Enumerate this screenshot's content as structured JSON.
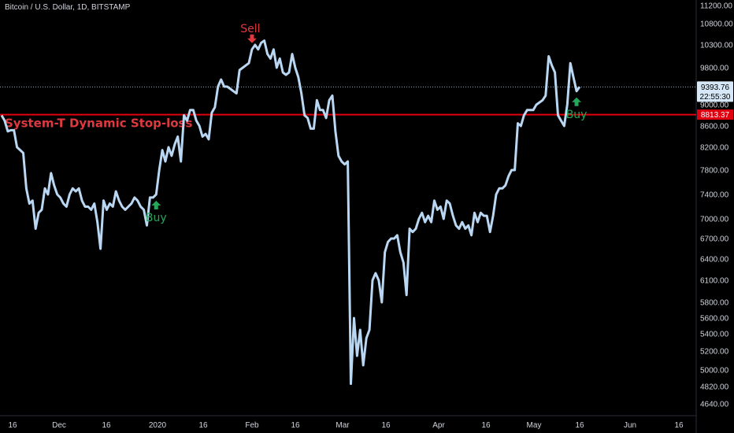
{
  "header": {
    "title": "Bitcoin / U.S. Dollar, 1D, BITSTAMP"
  },
  "chart_data": {
    "type": "line",
    "title": "Bitcoin / U.S. Dollar, 1D, BITSTAMP",
    "ylim": [
      4500,
      11300
    ],
    "y_ticks": [
      "11200.00",
      "10800.00",
      "10300.00",
      "9800.00",
      "9400.00",
      "9000.00",
      "8600.00",
      "8200.00",
      "7800.00",
      "7400.00",
      "7000.00",
      "6700.00",
      "6400.00",
      "6100.00",
      "5800.00",
      "5600.00",
      "5400.00",
      "5200.00",
      "5000.00",
      "4820.00",
      "4640.00"
    ],
    "x_tick_labels": [
      "16",
      "Dec",
      "16",
      "2020",
      "16",
      "Feb",
      "16",
      "Mar",
      "16",
      "Apr",
      "16",
      "May",
      "16",
      "Jun",
      "16"
    ],
    "series": [
      {
        "color": "#b9d7f2",
        "values": [
          8800,
          8700,
          8500,
          8520,
          8520,
          8200,
          8150,
          8100,
          7500,
          7250,
          7300,
          6850,
          7100,
          7150,
          7500,
          7400,
          7750,
          7550,
          7400,
          7350,
          7250,
          7200,
          7400,
          7500,
          7450,
          7500,
          7300,
          7200,
          7200,
          7150,
          7250,
          6950,
          6550,
          7300,
          7150,
          7250,
          7200,
          7450,
          7300,
          7200,
          7150,
          7200,
          7250,
          7350,
          7300,
          7200,
          7150,
          6900,
          7350,
          7350,
          7400,
          7800,
          8150,
          7950,
          8200,
          8050,
          8250,
          8400,
          7950,
          8800,
          8700,
          8900,
          8900,
          8700,
          8600,
          8400,
          8450,
          8350,
          8850,
          8950,
          9400,
          9550,
          9400,
          9400,
          9350,
          9300,
          9250,
          9750,
          9800,
          9850,
          9900,
          10200,
          10300,
          10200,
          10350,
          10400,
          10100,
          10000,
          10200,
          9800,
          10000,
          9700,
          9650,
          9700,
          10100,
          9800,
          9600,
          9250,
          8800,
          8750,
          8550,
          8550,
          9100,
          8900,
          8900,
          8750,
          9100,
          9200,
          8500,
          8050,
          7950,
          7900,
          7950,
          4850,
          5600,
          5150,
          5450,
          5050,
          5350,
          5450,
          6100,
          6200,
          6100,
          5800,
          6500,
          6650,
          6700,
          6700,
          6750,
          6500,
          6350,
          5900,
          6850,
          6800,
          6850,
          7000,
          7100,
          6950,
          7050,
          6950,
          7300,
          7150,
          7200,
          7000,
          7300,
          7250,
          7050,
          6900,
          6850,
          6950,
          6850,
          6900,
          6750,
          7100,
          6950,
          7100,
          7050,
          7050,
          6800,
          7050,
          7400,
          7500,
          7500,
          7550,
          7700,
          7800,
          7800,
          8650,
          8600,
          8800,
          8900,
          8900,
          8900,
          9000,
          9050,
          9100,
          9200,
          10050,
          9850,
          9700,
          8800,
          8700,
          8600,
          9000,
          9900,
          9600,
          9300,
          9394
        ]
      }
    ],
    "current_price": "9393.76",
    "countdown": "22:55:30",
    "stop_level": "8813.37",
    "stop_label": "System-T Dynamic Stop-loss",
    "signals": [
      {
        "type": "buy",
        "label": "Buy",
        "index": 50
      },
      {
        "type": "sell",
        "label": "Sell",
        "index": 81
      },
      {
        "type": "buy",
        "label": "Buy",
        "index": 186
      }
    ],
    "colors": {
      "line": "#b9d7f2",
      "stop": "#e0000f",
      "buy": "#26a65b",
      "sell": "#e0383f"
    },
    "grid": false,
    "legend": "none"
  }
}
